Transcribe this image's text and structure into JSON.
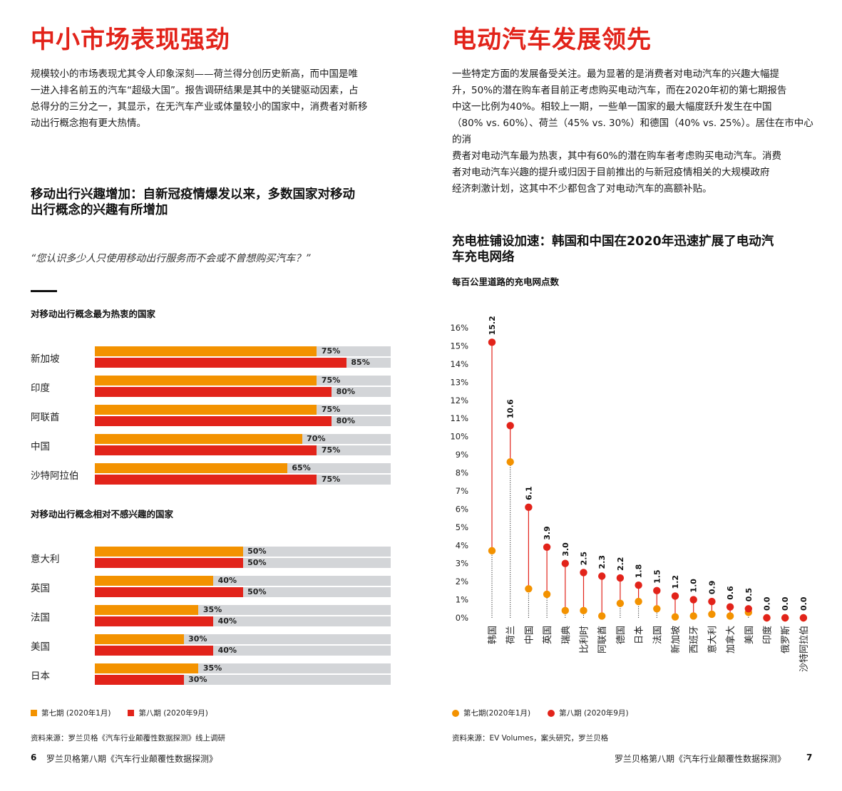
{
  "left": {
    "title": "中小市场表现强劲",
    "paragraph": [
      "规模较小的市场表现尤其令人印象深刻——荷兰得分创历史新高，而中国是唯",
      "一进入排名前五的汽车“超级大国”。报告调研结果是其中的关键驱动因素，占",
      "总得分的三分之一，其显示，在无汽车产业或体量较小的国家中，消费者对新移",
      "动出行概念抱有更大热情。"
    ],
    "chart_heading": [
      "移动出行兴趣增加：自新冠疫情爆发以来，多数国家对移动",
      "出行概念的兴趣有所增加"
    ],
    "quote": "“您认识多少人只使用移动出行服务而不会或不曾想购买汽车？”",
    "legend": {
      "period7": "第七期 (2020年1月)",
      "period8": "第八期 (2020年9月)"
    },
    "source": "资料来源：罗兰贝格《汽车行业颠覆性数据探测》线上调研",
    "page_number": "6",
    "footer": "罗兰贝格第八期《汽车行业颠覆性数据探测》"
  },
  "right": {
    "title": "电动汽车发展领先",
    "paragraph": [
      "一些特定方面的发展备受关注。最为显著的是消费者对电动汽车的兴趣大幅提",
      "升，50%的潜在购车者目前正考虑购买电动汽车，而在2020年初的第七期报告",
      "中这一比例为40%。相较上一期，一些单一国家的最大幅度跃升发生在中国",
      "（80% vs. 60%）、荷兰（45% vs. 30%）和德国（40% vs. 25%）。居住在市中心的消",
      "费者对电动汽车最为热衷，其中有60%的潜在购车者考虑购买电动汽车。消费",
      "者对电动汽车兴趣的提升或归因于目前推出的与新冠疫情相关的大规模政府",
      "经济刺激计划，这其中不少都包含了对电动汽车的高额补贴。"
    ],
    "chart_heading": [
      "充电桩铺设加速：韩国和中国在2020年迅速扩展了电动汽",
      "车充电网络"
    ],
    "legend": {
      "period7": "第七期(2020年1月)",
      "period8": "第八期 (2020年9月)"
    },
    "source": "资料来源：EV Volumes，案头研究，罗兰贝格",
    "page_number": "7",
    "footer": "罗兰贝格第八期《汽车行业颠覆性数据探测》"
  },
  "colors": {
    "period7": "#f39200",
    "period8": "#e2231a",
    "track": "#d3d5d8",
    "accent": "#e2231a"
  },
  "chart_data": [
    {
      "type": "bar",
      "title": "对移动出行概念最为热衷的国家",
      "categories": [
        "新加坡",
        "印度",
        "阿联酋",
        "中国",
        "沙特阿拉伯"
      ],
      "series": [
        {
          "name": "第七期 (2020年1月)",
          "values": [
            75,
            75,
            75,
            70,
            65
          ],
          "labels": [
            "75%",
            "75%",
            "75%",
            "70%",
            "65%"
          ]
        },
        {
          "name": "第八期 (2020年9月)",
          "values": [
            85,
            80,
            80,
            75,
            75
          ],
          "labels": [
            "85%",
            "80%",
            "80%",
            "75%",
            "75%"
          ]
        }
      ],
      "xlim": [
        0,
        100
      ]
    },
    {
      "type": "bar",
      "title": "对移动出行概念相对不感兴趣的国家",
      "categories": [
        "意大利",
        "英国",
        "法国",
        "美国",
        "日本"
      ],
      "series": [
        {
          "name": "第七期 (2020年1月)",
          "values": [
            50,
            40,
            35,
            30,
            35
          ],
          "labels": [
            "50%",
            "40%",
            "35%",
            "30%",
            "35%"
          ]
        },
        {
          "name": "第八期 (2020年9月)",
          "values": [
            50,
            50,
            40,
            40,
            30
          ],
          "labels": [
            "50%",
            "50%",
            "40%",
            "40%",
            "30%"
          ]
        }
      ],
      "xlim": [
        0,
        100
      ]
    },
    {
      "type": "scatter",
      "title": "每百公里道路的充电网点数",
      "categories": [
        "韩国",
        "荷兰",
        "中国",
        "英国",
        "瑞典",
        "比利时",
        "阿联酋",
        "德国",
        "日本",
        "法国",
        "新加坡",
        "西班牙",
        "意大利",
        "加拿大",
        "美国",
        "印度",
        "俄罗斯",
        "沙特阿拉伯"
      ],
      "series": [
        {
          "name": "第七期(2020年1月)",
          "values": [
            3.7,
            8.6,
            1.6,
            1.3,
            0.4,
            0.4,
            0.1,
            0.8,
            0.9,
            0.5,
            0.05,
            0.1,
            0.2,
            0.1,
            0.3,
            0.0,
            0.0,
            0.0
          ]
        },
        {
          "name": "第八期 (2020年9月)",
          "values": [
            15.2,
            10.6,
            6.1,
            3.9,
            3.0,
            2.5,
            2.3,
            2.2,
            1.8,
            1.5,
            1.2,
            1.0,
            0.9,
            0.6,
            0.5,
            0.0,
            0.0,
            0.0
          ],
          "labels": [
            "15.2",
            "10.6",
            "6.1",
            "3.9",
            "3.0",
            "2.5",
            "2.3",
            "2.2",
            "1.8",
            "1.5",
            "1.2",
            "1.0",
            "0.9",
            "0.6",
            "0.5",
            "0.0",
            "0.0",
            "0.0"
          ]
        }
      ],
      "yticks": [
        "0%",
        "1%",
        "2%",
        "3%",
        "4%",
        "5%",
        "6%",
        "7%",
        "8%",
        "9%",
        "10%",
        "11%",
        "12%",
        "13%",
        "14%",
        "15%",
        "16%"
      ],
      "ylim": [
        0,
        16
      ]
    }
  ]
}
